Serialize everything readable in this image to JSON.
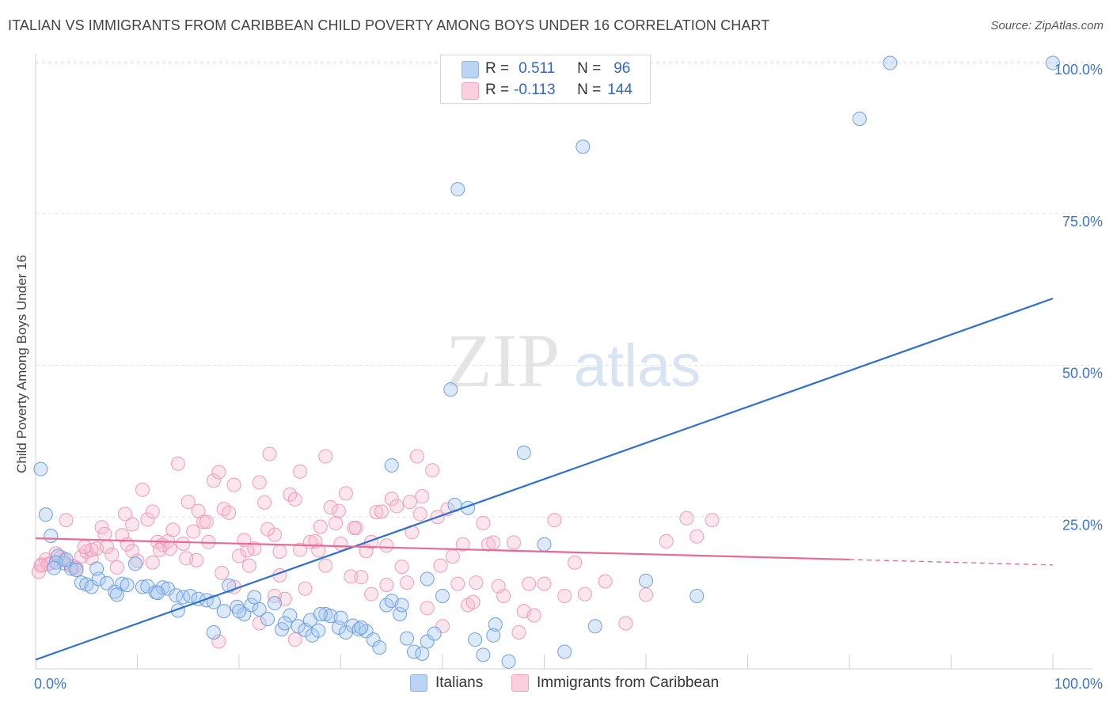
{
  "header": {
    "title": "ITALIAN VS IMMIGRANTS FROM CARIBBEAN CHILD POVERTY AMONG BOYS UNDER 16 CORRELATION CHART",
    "source": "Source: ZipAtlas.com"
  },
  "watermark": {
    "zip": "ZIP",
    "atlas": "atlas"
  },
  "stats_box": {
    "rows": [
      {
        "r_label": "R =",
        "r_value": "0.511",
        "n_label": "N =",
        "n_value": "96",
        "color": "#a8c8f0"
      },
      {
        "r_label": "R =",
        "r_value": "-0.113",
        "n_label": "N =",
        "n_value": "144",
        "color": "#f6b6cb"
      }
    ]
  },
  "legend": {
    "items": [
      "Italians",
      "Immigrants from Caribbean"
    ]
  },
  "chart_data": {
    "type": "scatter",
    "title": "ITALIAN VS IMMIGRANTS FROM CARIBBEAN CHILD POVERTY AMONG BOYS UNDER 16 CORRELATION CHART",
    "xlabel": "",
    "ylabel": "Child Poverty Among Boys Under 16",
    "xlim": [
      0,
      100
    ],
    "ylim": [
      0,
      100
    ],
    "x_tick_labels": [
      "0.0%",
      "100.0%"
    ],
    "y_tick_labels": [
      "25.0%",
      "50.0%",
      "75.0%",
      "100.0%"
    ],
    "y_ticks": [
      25,
      50,
      75,
      100
    ],
    "colors": {
      "italians": "#6fa3e6",
      "caribbean": "#f08caf",
      "italians_line": "#2f6fce",
      "caribbean_line": "#e86a96"
    },
    "series": [
      {
        "name": "Italians",
        "trend": {
          "x": [
            0,
            100
          ],
          "y": [
            1.5,
            61.0
          ]
        },
        "points": [
          [
            0.5,
            32.9
          ],
          [
            1.0,
            25.4
          ],
          [
            1.5,
            21.9
          ],
          [
            2.2,
            18.6
          ],
          [
            2.8,
            17.4
          ],
          [
            3.5,
            16.5
          ],
          [
            4.0,
            16.3
          ],
          [
            4.5,
            14.2
          ],
          [
            5.0,
            13.9
          ],
          [
            5.5,
            13.5
          ],
          [
            6.2,
            14.8
          ],
          [
            7.0,
            14.1
          ],
          [
            7.8,
            12.7
          ],
          [
            8.5,
            14.0
          ],
          [
            9.0,
            13.8
          ],
          [
            9.8,
            17.3
          ],
          [
            10.5,
            13.5
          ],
          [
            11.0,
            13.6
          ],
          [
            11.8,
            12.6
          ],
          [
            12.5,
            13.4
          ],
          [
            13.0,
            13.2
          ],
          [
            13.8,
            12.1
          ],
          [
            14.5,
            11.8
          ],
          [
            15.2,
            12.0
          ],
          [
            16.0,
            11.5
          ],
          [
            16.8,
            11.3
          ],
          [
            17.5,
            11.0
          ],
          [
            18.5,
            9.5
          ],
          [
            19.0,
            13.7
          ],
          [
            19.8,
            10.2
          ],
          [
            20.5,
            9.0
          ],
          [
            21.2,
            10.5
          ],
          [
            22.0,
            9.8
          ],
          [
            22.8,
            8.2
          ],
          [
            23.5,
            10.8
          ],
          [
            24.2,
            6.5
          ],
          [
            25.0,
            8.8
          ],
          [
            25.8,
            7.0
          ],
          [
            26.5,
            6.4
          ],
          [
            27.2,
            5.5
          ],
          [
            27.8,
            6.3
          ],
          [
            28.5,
            9.0
          ],
          [
            29.0,
            8.7
          ],
          [
            29.8,
            6.8
          ],
          [
            30.5,
            6.0
          ],
          [
            31.2,
            7.1
          ],
          [
            31.8,
            6.5
          ],
          [
            32.5,
            6.2
          ],
          [
            33.2,
            4.8
          ],
          [
            33.8,
            3.5
          ],
          [
            34.5,
            10.5
          ],
          [
            35.0,
            11.2
          ],
          [
            35.8,
            9.0
          ],
          [
            36.5,
            5.0
          ],
          [
            37.2,
            2.8
          ],
          [
            38.0,
            2.5
          ],
          [
            38.5,
            4.5
          ],
          [
            39.2,
            5.8
          ],
          [
            40.0,
            12.0
          ],
          [
            40.8,
            46.0
          ],
          [
            41.5,
            79.0
          ],
          [
            42.5,
            26.5
          ],
          [
            43.2,
            4.8
          ],
          [
            44.0,
            2.3
          ],
          [
            45.2,
            7.3
          ],
          [
            46.5,
            1.2
          ],
          [
            48.0,
            35.6
          ],
          [
            50.0,
            20.5
          ],
          [
            52.0,
            2.8
          ],
          [
            53.8,
            86.0
          ],
          [
            55.0,
            7.0
          ],
          [
            60.0,
            14.5
          ],
          [
            65.0,
            12.0
          ],
          [
            38.5,
            14.8
          ],
          [
            30.0,
            8.4
          ],
          [
            41.2,
            27.0
          ],
          [
            81.0,
            90.6
          ],
          [
            84.0,
            99.8
          ],
          [
            100.0,
            99.8
          ],
          [
            45.0,
            5.5
          ],
          [
            14.0,
            9.6
          ],
          [
            17.5,
            6.0
          ],
          [
            36.0,
            10.5
          ],
          [
            8.0,
            12.2
          ],
          [
            3.0,
            18.0
          ],
          [
            27.0,
            8.0
          ],
          [
            35.0,
            33.5
          ],
          [
            32.0,
            6.8
          ],
          [
            21.5,
            11.8
          ],
          [
            6.0,
            16.5
          ],
          [
            12.0,
            12.5
          ],
          [
            24.5,
            7.5
          ],
          [
            28.0,
            9.0
          ],
          [
            2.0,
            17.5
          ],
          [
            1.8,
            16.6
          ],
          [
            20.0,
            9.5
          ]
        ]
      },
      {
        "name": "Immigrants from Caribbean",
        "trend": {
          "x": [
            0,
            80
          ],
          "y": [
            21.5,
            18.0
          ],
          "dash_x": [
            80,
            100
          ],
          "dash_y": [
            18.0,
            17.1
          ]
        },
        "points": [
          [
            0.3,
            16.0
          ],
          [
            0.6,
            17.2
          ],
          [
            1.0,
            18.0
          ],
          [
            1.5,
            17.4
          ],
          [
            2.0,
            19.0
          ],
          [
            2.5,
            18.4
          ],
          [
            3.0,
            24.5
          ],
          [
            3.5,
            17.0
          ],
          [
            4.0,
            16.6
          ],
          [
            4.5,
            18.5
          ],
          [
            5.0,
            19.3
          ],
          [
            5.5,
            18.2
          ],
          [
            6.0,
            19.8
          ],
          [
            6.5,
            23.3
          ],
          [
            7.0,
            20.1
          ],
          [
            7.5,
            18.8
          ],
          [
            8.0,
            16.7
          ],
          [
            8.5,
            22.0
          ],
          [
            9.0,
            20.5
          ],
          [
            9.5,
            23.8
          ],
          [
            10.0,
            17.8
          ],
          [
            10.5,
            29.5
          ],
          [
            11.0,
            24.6
          ],
          [
            11.5,
            25.9
          ],
          [
            12.0,
            20.9
          ],
          [
            12.5,
            20.4
          ],
          [
            13.0,
            21.0
          ],
          [
            13.5,
            22.9
          ],
          [
            14.0,
            33.8
          ],
          [
            14.5,
            20.6
          ],
          [
            15.0,
            27.5
          ],
          [
            15.5,
            22.6
          ],
          [
            16.0,
            26.0
          ],
          [
            16.5,
            24.2
          ],
          [
            17.0,
            20.9
          ],
          [
            17.5,
            31.0
          ],
          [
            18.0,
            32.4
          ],
          [
            18.5,
            26.3
          ],
          [
            19.0,
            25.7
          ],
          [
            19.5,
            30.3
          ],
          [
            20.0,
            18.6
          ],
          [
            20.5,
            21.2
          ],
          [
            21.0,
            17.0
          ],
          [
            21.5,
            19.8
          ],
          [
            22.0,
            30.7
          ],
          [
            22.5,
            27.4
          ],
          [
            23.0,
            35.4
          ],
          [
            23.5,
            22.1
          ],
          [
            24.0,
            15.4
          ],
          [
            24.5,
            11.5
          ],
          [
            25.0,
            28.7
          ],
          [
            25.5,
            27.9
          ],
          [
            26.0,
            32.5
          ],
          [
            26.5,
            13.2
          ],
          [
            27.0,
            20.9
          ],
          [
            27.5,
            21.0
          ],
          [
            28.0,
            23.4
          ],
          [
            28.5,
            35.0
          ],
          [
            29.0,
            26.6
          ],
          [
            29.5,
            24.0
          ],
          [
            30.0,
            20.6
          ],
          [
            30.5,
            28.9
          ],
          [
            31.0,
            15.2
          ],
          [
            31.5,
            23.2
          ],
          [
            32.0,
            15.1
          ],
          [
            32.5,
            19.4
          ],
          [
            33.0,
            12.3
          ],
          [
            33.5,
            25.8
          ],
          [
            34.0,
            25.9
          ],
          [
            34.5,
            13.8
          ],
          [
            35.0,
            28.0
          ],
          [
            35.5,
            26.8
          ],
          [
            36.0,
            16.8
          ],
          [
            36.5,
            14.2
          ],
          [
            37.0,
            22.5
          ],
          [
            37.5,
            35.0
          ],
          [
            38.0,
            28.4
          ],
          [
            38.5,
            10.0
          ],
          [
            39.0,
            32.7
          ],
          [
            39.5,
            25.0
          ],
          [
            40.0,
            7.0
          ],
          [
            40.5,
            26.3
          ],
          [
            41.0,
            18.5
          ],
          [
            41.5,
            14.0
          ],
          [
            42.0,
            20.5
          ],
          [
            42.5,
            10.5
          ],
          [
            43.0,
            11.0
          ],
          [
            44.0,
            24.0
          ],
          [
            44.5,
            20.5
          ],
          [
            45.0,
            20.8
          ],
          [
            46.0,
            12.0
          ],
          [
            47.0,
            20.8
          ],
          [
            47.5,
            6.0
          ],
          [
            48.0,
            9.5
          ],
          [
            48.5,
            14.0
          ],
          [
            49.0,
            8.8
          ],
          [
            50.0,
            14.0
          ],
          [
            51.0,
            24.5
          ],
          [
            52.0,
            12.0
          ],
          [
            53.0,
            17.5
          ],
          [
            54.0,
            12.3
          ],
          [
            56.0,
            14.4
          ],
          [
            58.0,
            7.5
          ],
          [
            60.0,
            12.2
          ],
          [
            62.0,
            21.0
          ],
          [
            64.0,
            24.8
          ],
          [
            66.5,
            24.5
          ],
          [
            65.0,
            21.8
          ],
          [
            5.5,
            19.6
          ],
          [
            3.8,
            16.8
          ],
          [
            9.5,
            19.4
          ],
          [
            11.5,
            17.5
          ],
          [
            13.2,
            19.8
          ],
          [
            15.8,
            17.9
          ],
          [
            18.3,
            15.8
          ],
          [
            20.8,
            19.5
          ],
          [
            22.8,
            23.0
          ],
          [
            24.0,
            19.3
          ],
          [
            26.0,
            19.6
          ],
          [
            27.8,
            19.5
          ],
          [
            29.8,
            26.0
          ],
          [
            31.3,
            23.2
          ],
          [
            33.0,
            20.9
          ],
          [
            34.5,
            20.3
          ],
          [
            36.8,
            27.5
          ],
          [
            37.8,
            25.5
          ],
          [
            39.8,
            17.0
          ],
          [
            43.3,
            14.2
          ],
          [
            45.5,
            13.6
          ],
          [
            23.5,
            12.0
          ],
          [
            22.0,
            7.5
          ],
          [
            18.0,
            4.5
          ],
          [
            25.5,
            4.8
          ],
          [
            19.5,
            13.5
          ],
          [
            28.5,
            17.0
          ],
          [
            16.8,
            24.2
          ],
          [
            12.2,
            19.6
          ],
          [
            14.8,
            18.2
          ],
          [
            8.8,
            25.5
          ],
          [
            6.8,
            22.2
          ],
          [
            4.8,
            20.1
          ],
          [
            2.8,
            17.9
          ],
          [
            1.2,
            17.2
          ],
          [
            0.5,
            17.0
          ]
        ]
      }
    ]
  }
}
